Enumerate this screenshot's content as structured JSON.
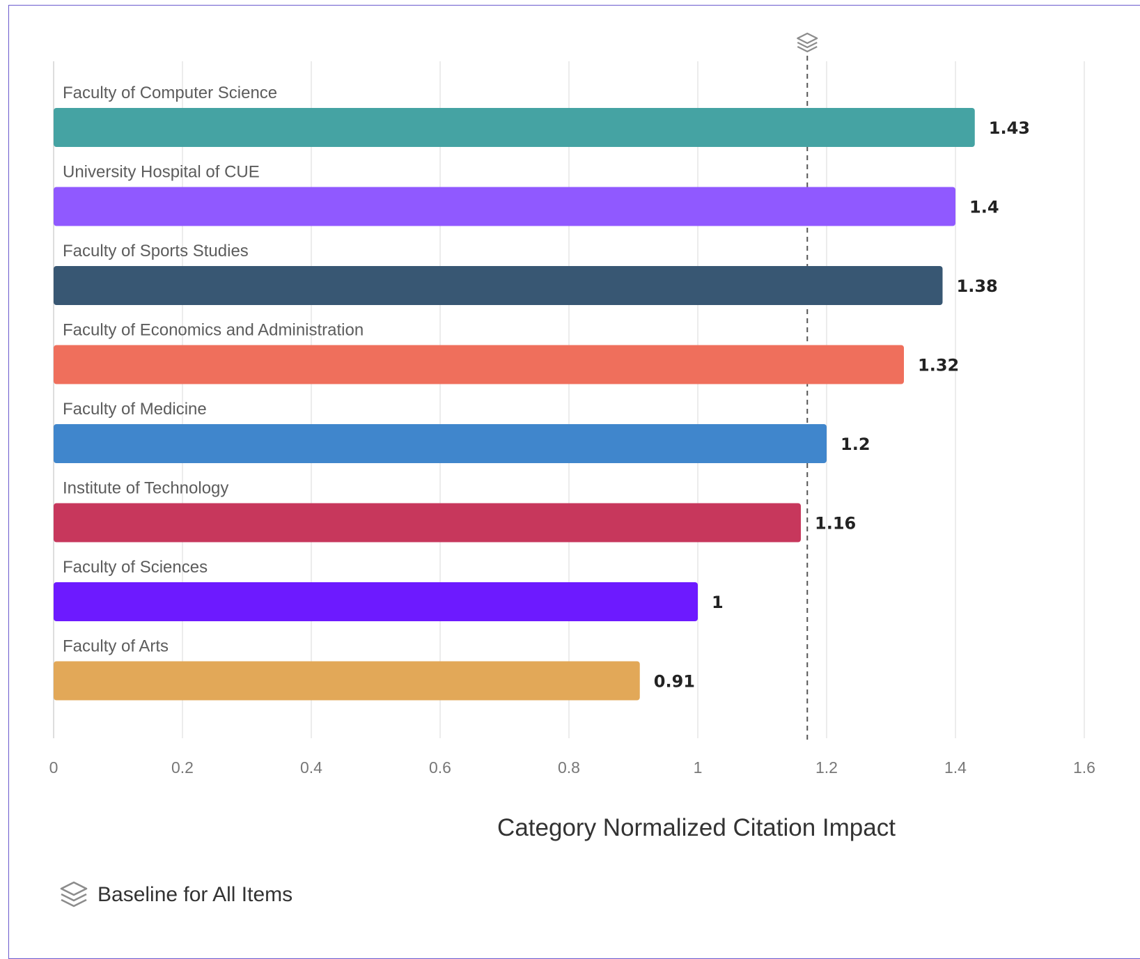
{
  "chart_data": {
    "type": "bar",
    "orientation": "horizontal",
    "categories": [
      "Faculty of Computer Science",
      "University Hospital of CUE",
      "Faculty of Sports Studies",
      "Faculty of Economics and Administration",
      "Faculty of Medicine",
      "Institute of Technology",
      "Faculty of Sciences",
      "Faculty of Arts"
    ],
    "values": [
      1.43,
      1.4,
      1.38,
      1.32,
      1.2,
      1.16,
      1,
      0.91
    ],
    "value_labels": [
      "1.43",
      "1.4",
      "1.38",
      "1.32",
      "1.2",
      "1.16",
      "1",
      "0.91"
    ],
    "colors": [
      "#45a3a3",
      "#9059ff",
      "#385773",
      "#ef6f5c",
      "#4086cc",
      "#c7375c",
      "#6d1aff",
      "#e2a858"
    ],
    "xlabel": "Category Normalized Citation Impact",
    "xlim": [
      0,
      1.6
    ],
    "xticks": [
      "0",
      "0.2",
      "0.4",
      "0.6",
      "0.8",
      "1",
      "1.2",
      "1.4",
      "1.6"
    ],
    "grid": true,
    "baseline": {
      "value": 1.17,
      "style": "dashed"
    },
    "legend": {
      "label": "Baseline for All Items",
      "icon": "layers-icon",
      "position": "bottom-left"
    }
  }
}
